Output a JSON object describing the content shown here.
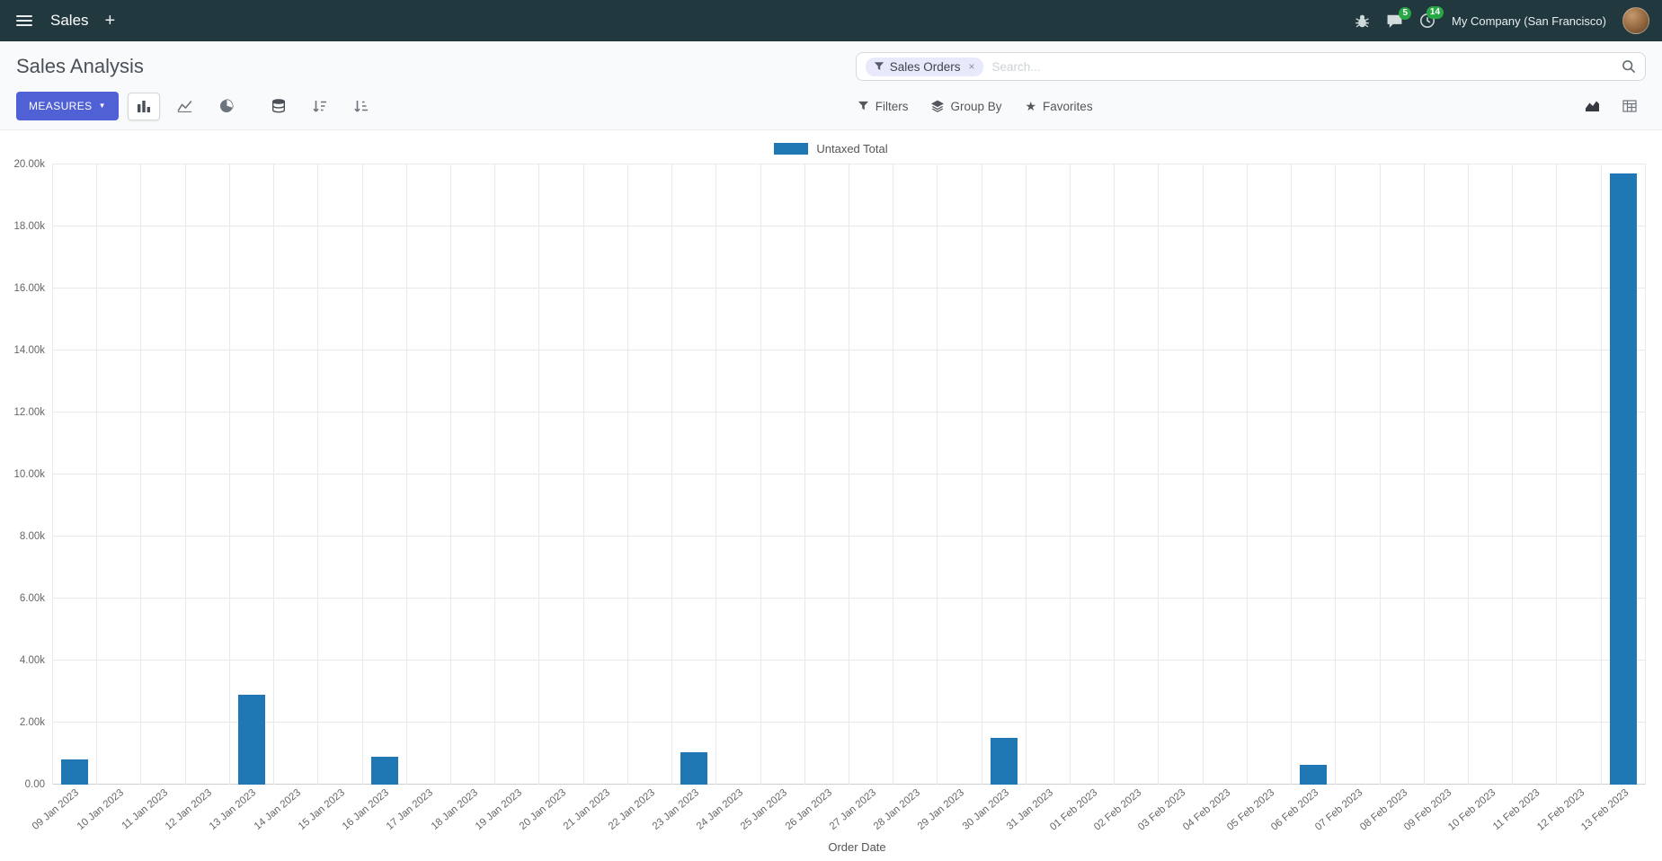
{
  "navbar": {
    "app_name": "Sales",
    "company": "My Company (San Francisco)",
    "badges": {
      "messages": "5",
      "activities": "14"
    }
  },
  "control_panel": {
    "title": "Sales Analysis",
    "measures_label": "MEASURES",
    "search": {
      "facet": "Sales Orders",
      "facet_remove": "×",
      "placeholder": "Search..."
    },
    "buttons": {
      "filters": "Filters",
      "group_by": "Group By",
      "favorites": "Favorites"
    }
  },
  "chart_data": {
    "type": "bar",
    "title": "",
    "legend": [
      "Untaxed Total"
    ],
    "series_color": "#1f77b4",
    "xlabel": "Order Date",
    "ylabel": "",
    "ylim": [
      0,
      20000
    ],
    "ytick_step": 2000,
    "grid": true,
    "legend_position": "top-center",
    "categories": [
      "09 Jan 2023",
      "10 Jan 2023",
      "11 Jan 2023",
      "12 Jan 2023",
      "13 Jan 2023",
      "14 Jan 2023",
      "15 Jan 2023",
      "16 Jan 2023",
      "17 Jan 2023",
      "18 Jan 2023",
      "19 Jan 2023",
      "20 Jan 2023",
      "21 Jan 2023",
      "22 Jan 2023",
      "23 Jan 2023",
      "24 Jan 2023",
      "25 Jan 2023",
      "26 Jan 2023",
      "27 Jan 2023",
      "28 Jan 2023",
      "29 Jan 2023",
      "30 Jan 2023",
      "31 Jan 2023",
      "01 Feb 2023",
      "02 Feb 2023",
      "03 Feb 2023",
      "04 Feb 2023",
      "05 Feb 2023",
      "06 Feb 2023",
      "07 Feb 2023",
      "08 Feb 2023",
      "09 Feb 2023",
      "10 Feb 2023",
      "11 Feb 2023",
      "12 Feb 2023",
      "13 Feb 2023"
    ],
    "values": [
      800,
      0,
      0,
      0,
      2900,
      0,
      0,
      900,
      0,
      0,
      0,
      0,
      0,
      0,
      1050,
      0,
      0,
      0,
      0,
      0,
      0,
      1500,
      0,
      0,
      0,
      0,
      0,
      0,
      650,
      0,
      0,
      0,
      0,
      0,
      0,
      19700
    ]
  }
}
